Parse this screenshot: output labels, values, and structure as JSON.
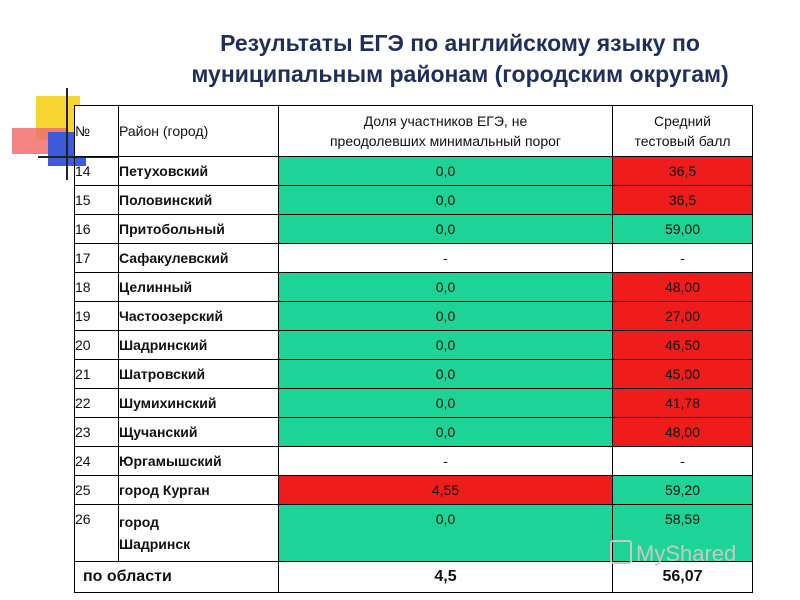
{
  "title": {
    "line1": "Результаты ЕГЭ по английскому языку по",
    "line2": "муниципальным районам (городским округам)"
  },
  "table": {
    "headers": {
      "num": "№",
      "district": "Район (город)",
      "share_line1": "Доля участников ЕГЭ, не",
      "share_line2": "преодолевших минимальный порог",
      "score_line1": "Средний",
      "score_line2": "тестовый балл"
    },
    "rows": [
      {
        "num": "14",
        "district": "Петуховский",
        "share": "0,0",
        "score": "36,5",
        "share_color": "green",
        "score_color": "red"
      },
      {
        "num": "15",
        "district": "Половинский",
        "share": "0,0",
        "score": "36,5",
        "share_color": "green",
        "score_color": "red"
      },
      {
        "num": "16",
        "district": "Притобольный",
        "share": "0,0",
        "score": "59,00",
        "share_color": "green",
        "score_color": "green"
      },
      {
        "num": "17",
        "district": "Сафакулевский",
        "share": "-",
        "score": "-",
        "share_color": "white",
        "score_color": "white"
      },
      {
        "num": "18",
        "district": "Целинный",
        "share": "0,0",
        "score": "48,00",
        "share_color": "green",
        "score_color": "red"
      },
      {
        "num": "19",
        "district": "Частоозерский",
        "share": "0,0",
        "score": "27,00",
        "share_color": "green",
        "score_color": "red"
      },
      {
        "num": "20",
        "district": "Шадринский",
        "share": "0,0",
        "score": "46,50",
        "share_color": "green",
        "score_color": "red"
      },
      {
        "num": "21",
        "district": "Шатровский",
        "share": "0,0",
        "score": "45,00",
        "share_color": "green",
        "score_color": "red"
      },
      {
        "num": "22",
        "district": "Шумихинский",
        "share": "0,0",
        "score": "41,78",
        "share_color": "green",
        "score_color": "red"
      },
      {
        "num": "23",
        "district": "Щучанский",
        "share": "0,0",
        "score": "48,00",
        "share_color": "green",
        "score_color": "red"
      },
      {
        "num": "24",
        "district": "Юргамышский",
        "share": "-",
        "score": "-",
        "share_color": "white",
        "score_color": "white"
      },
      {
        "num": "25",
        "district": "город Курган",
        "share": "4,55",
        "score": "59,20",
        "share_color": "red",
        "score_color": "green"
      },
      {
        "num": "26",
        "district_line1": "город",
        "district_line2": "Шадринск",
        "share": "0,0",
        "score": "58,59",
        "share_color": "green",
        "score_color": "green"
      }
    ],
    "total": {
      "label": "по области",
      "share": "4,5",
      "score": "56,07"
    }
  },
  "colors": {
    "green": "#1ed398",
    "red": "#ef1c1c",
    "title": "#1f2e5c"
  },
  "watermark": "MyShared"
}
